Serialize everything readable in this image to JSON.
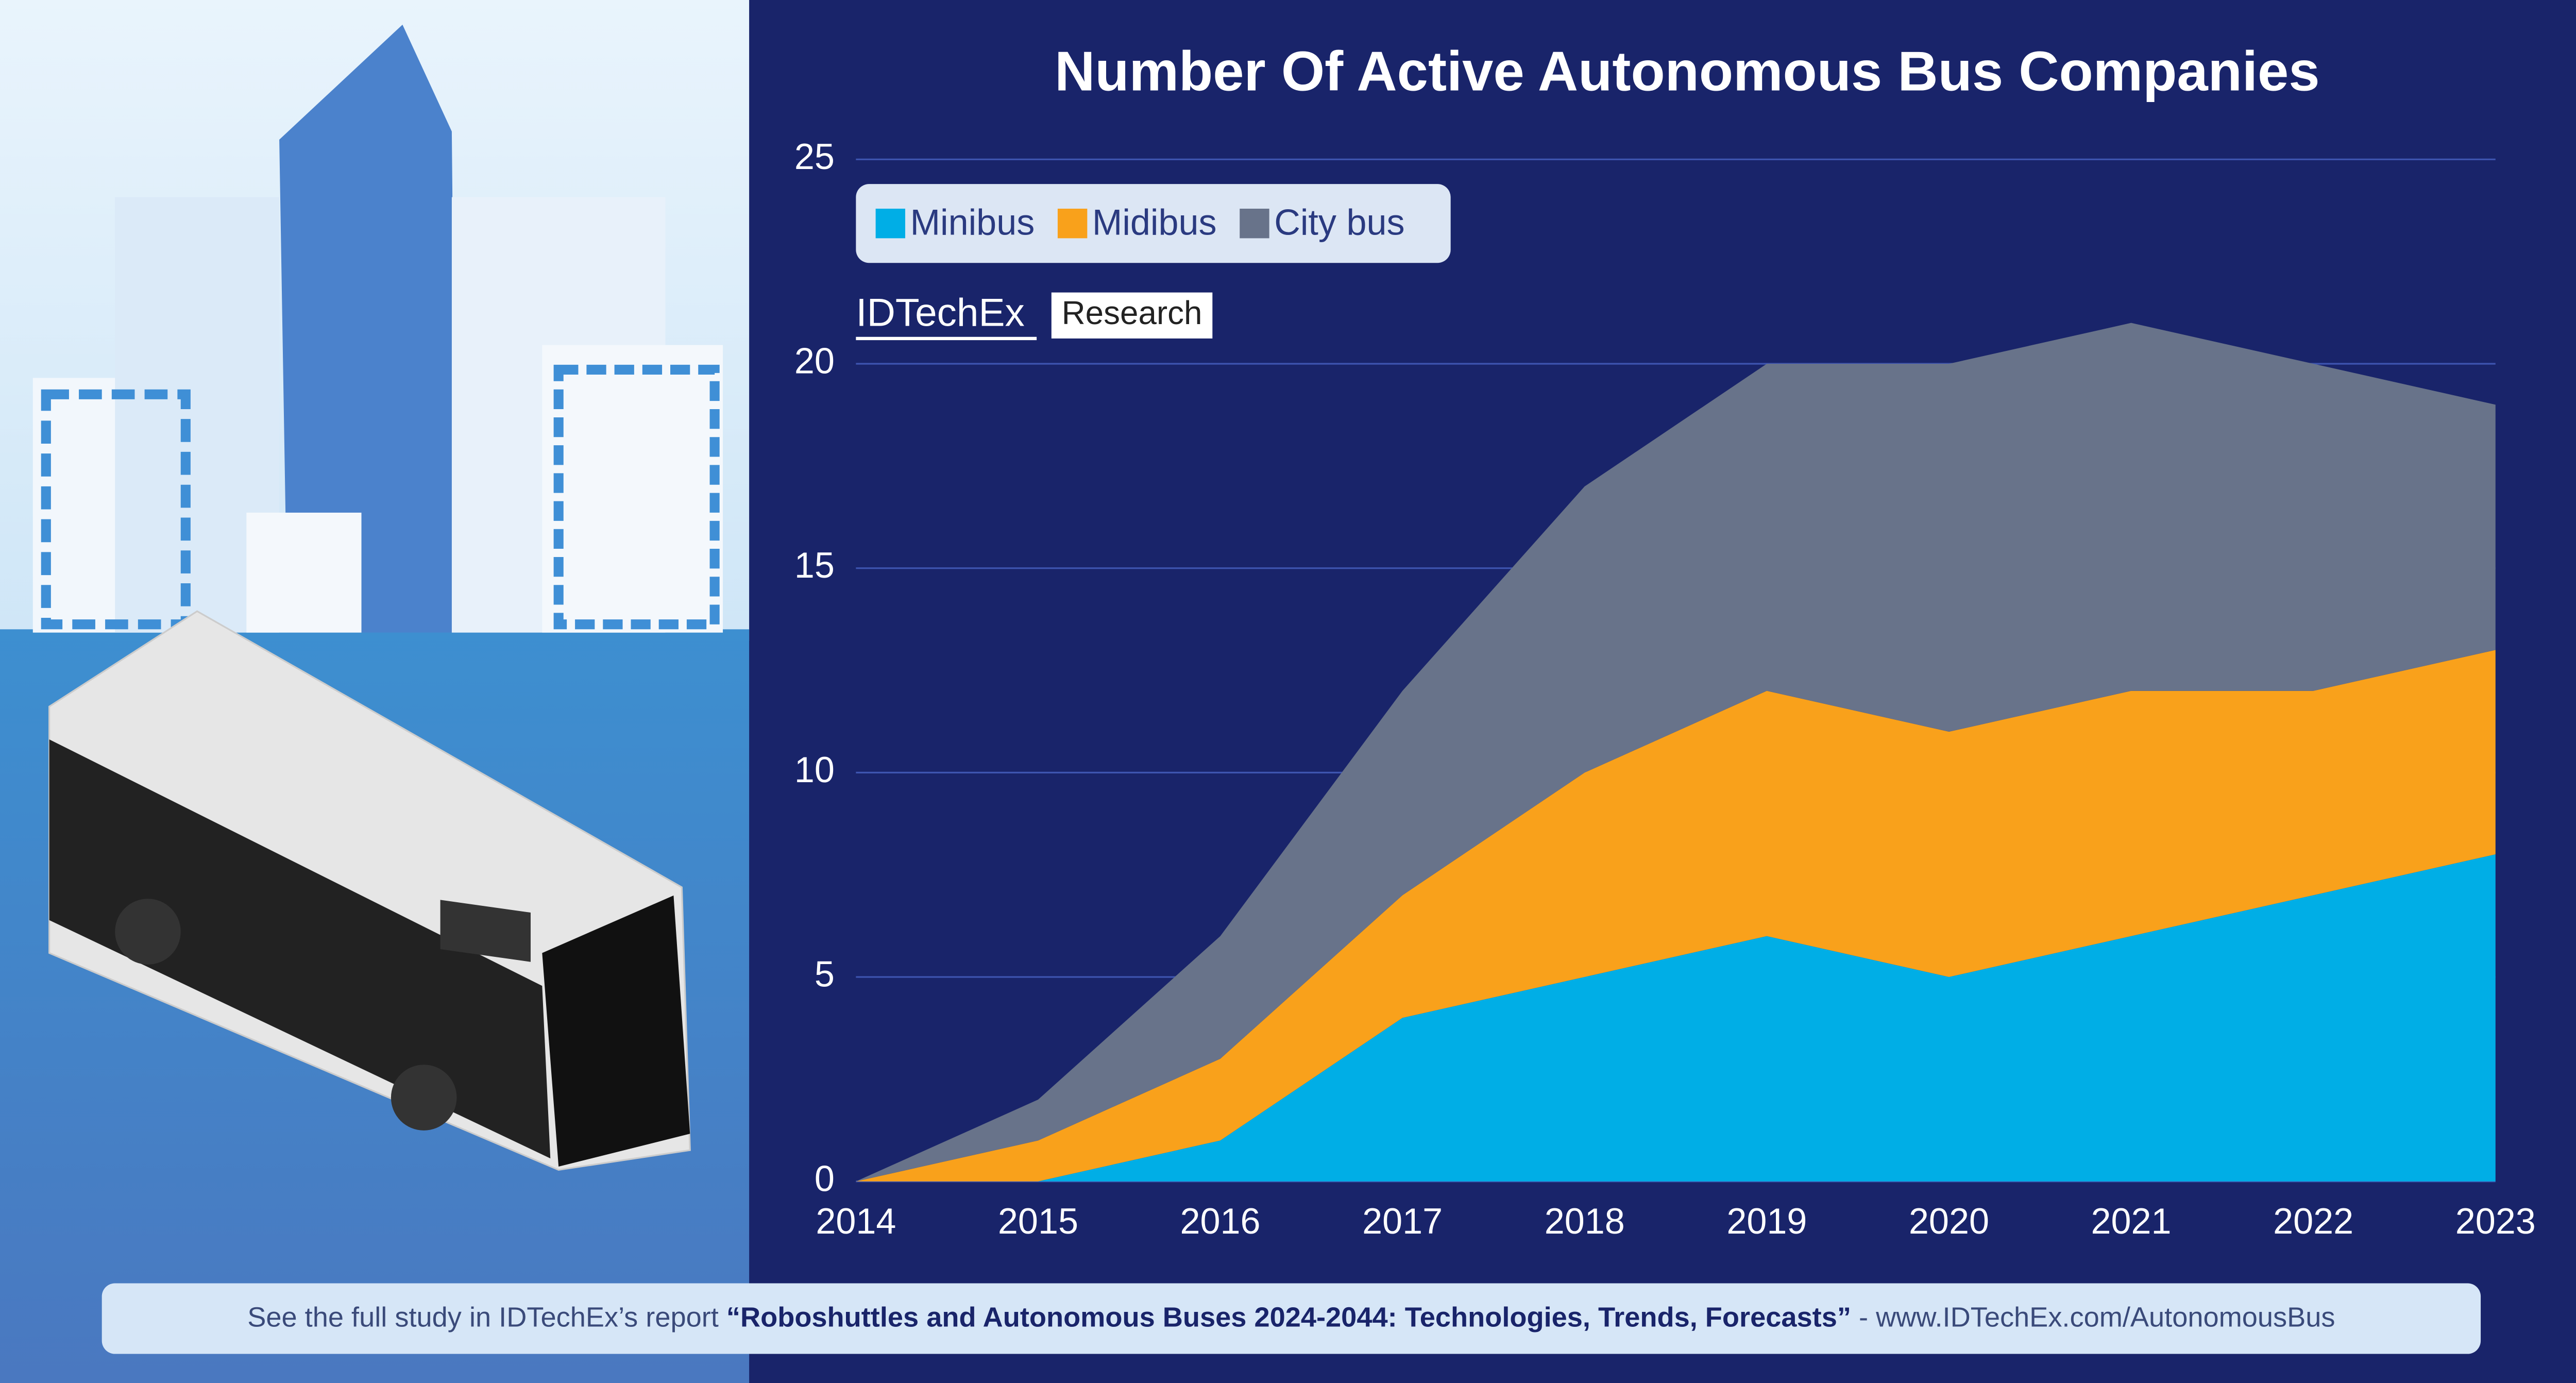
{
  "chart_data": {
    "type": "area",
    "stacked": true,
    "title": "Number Of Active Autonomous Bus Companies",
    "categories": [
      "2014",
      "2015",
      "2016",
      "2017",
      "2018",
      "2019",
      "2020",
      "2021",
      "2022",
      "2023"
    ],
    "series": [
      {
        "name": "Minibus",
        "color": "#00aee6",
        "values": [
          0,
          0,
          1,
          4,
          5,
          6,
          5,
          6,
          7,
          8
        ]
      },
      {
        "name": "Midibus",
        "color": "#f9a11b",
        "values": [
          0,
          1,
          2,
          3,
          5,
          6,
          6,
          6,
          5,
          5
        ]
      },
      {
        "name": "City bus",
        "color": "#68738a",
        "values": [
          0,
          1,
          3,
          5,
          7,
          8,
          9,
          9,
          8,
          6
        ]
      }
    ],
    "ylim": [
      0,
      25
    ],
    "yticks": [
      0,
      5,
      10,
      15,
      20,
      25
    ],
    "grid": true,
    "legend": "top left"
  },
  "logo": {
    "brand": "IDTechEx",
    "tag": "Research"
  },
  "footer": {
    "lead": "See the full study in IDTechEx’s report ",
    "report": "“Roboshuttles and Autonomous Buses 2024-2044: Technologies, Trends, Forecasts”",
    "tail": " - www.IDTechEx.com/AutonomousBus"
  }
}
